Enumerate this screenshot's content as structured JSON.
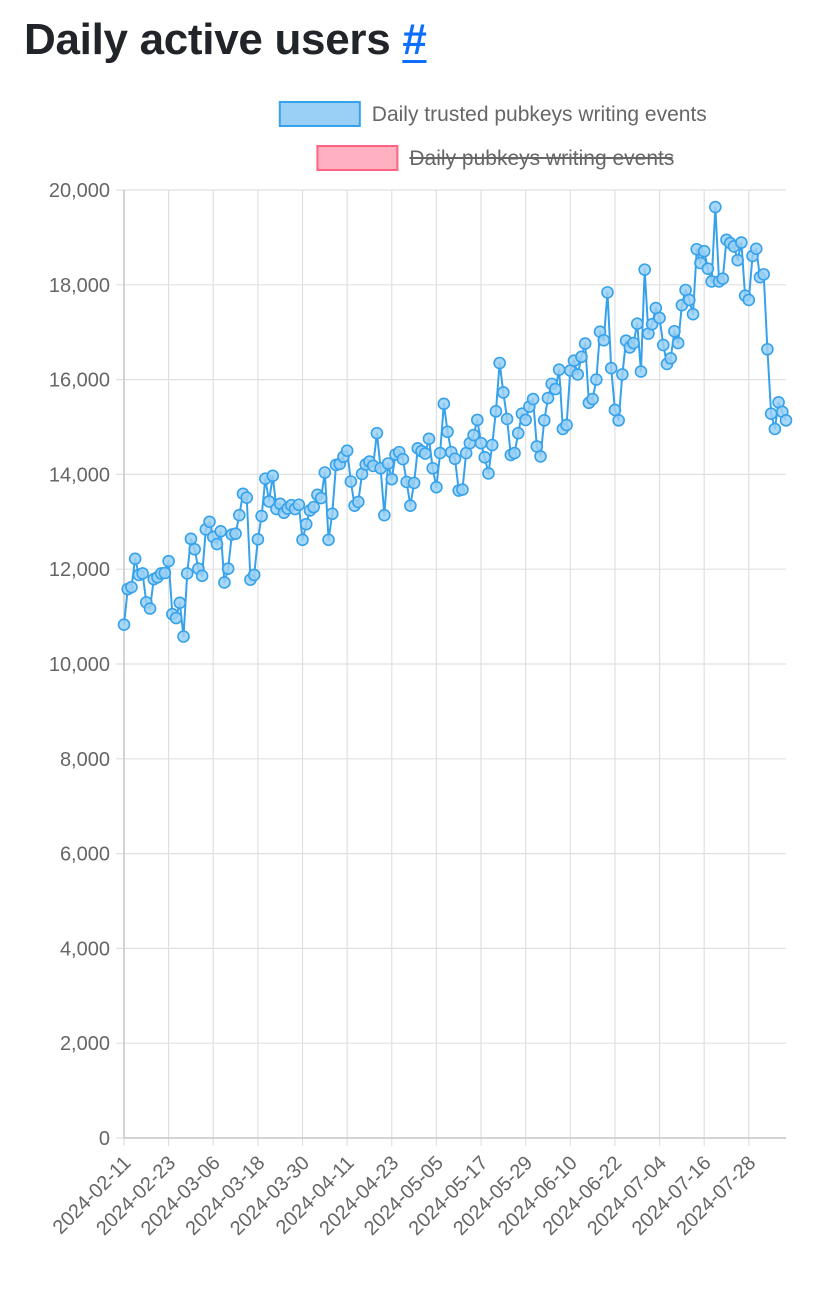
{
  "page": {
    "title": "Daily active users",
    "anchor": "#"
  },
  "chart_data": {
    "type": "line",
    "ylim": [
      0,
      20000
    ],
    "yticks": [
      0,
      2000,
      4000,
      6000,
      8000,
      10000,
      12000,
      14000,
      16000,
      18000,
      20000
    ],
    "x_tick_labels": [
      "2024-02-11",
      "2024-02-23",
      "2024-03-06",
      "2024-03-18",
      "2024-03-30",
      "2024-04-11",
      "2024-04-23",
      "2024-05-05",
      "2024-05-17",
      "2024-05-29",
      "2024-06-10",
      "2024-06-22",
      "2024-07-04",
      "2024-07-16",
      "2024-07-28"
    ],
    "grid": true,
    "legend_position": "top",
    "series": [
      {
        "name": "Daily trusted pubkeys writing events",
        "color": "#36a2eb",
        "fill": "#9ad0f5",
        "hidden": false,
        "values": [
          10830,
          11580,
          11620,
          12220,
          11880,
          11910,
          11300,
          11170,
          11790,
          11830,
          11910,
          11920,
          12170,
          11050,
          10970,
          11290,
          10580,
          11910,
          12640,
          12420,
          12010,
          11860,
          12840,
          13000,
          12680,
          12530,
          12800,
          11720,
          12010,
          12730,
          12750,
          13140,
          13590,
          13510,
          11780,
          11880,
          12630,
          13120,
          13910,
          13430,
          13970,
          13270,
          13380,
          13190,
          13280,
          13350,
          13270,
          13360,
          12620,
          12950,
          13240,
          13310,
          13570,
          13500,
          14040,
          12620,
          13170,
          14200,
          14220,
          14370,
          14500,
          13850,
          13340,
          13420,
          14010,
          14210,
          14270,
          14180,
          14870,
          14130,
          13140,
          14230,
          13900,
          14420,
          14470,
          14320,
          13840,
          13340,
          13820,
          14550,
          14490,
          14440,
          14750,
          14130,
          13730,
          14450,
          15490,
          14900,
          14470,
          14330,
          13660,
          13680,
          14450,
          14660,
          14830,
          15150,
          14660,
          14360,
          14020,
          14620,
          15330,
          16350,
          15730,
          15170,
          14410,
          14450,
          14870,
          15280,
          15150,
          15430,
          15590,
          14590,
          14380,
          15140,
          15610,
          15910,
          15800,
          16210,
          14960,
          15040,
          16190,
          16400,
          16110,
          16480,
          16760,
          15510,
          15590,
          16000,
          17010,
          16830,
          17840,
          16240,
          15360,
          15140,
          16110,
          16820,
          16680,
          16770,
          17180,
          16170,
          18320,
          16970,
          17170,
          17510,
          17300,
          16730,
          16330,
          16450,
          17020,
          16770,
          17570,
          17890,
          17680,
          17380,
          18750,
          18460,
          18710,
          18340,
          18070,
          19640,
          18070,
          18130,
          18950,
          18880,
          18810,
          18520,
          18890,
          17770,
          17680,
          18610,
          18760,
          18160,
          18220,
          16640,
          15280,
          14960,
          15520,
          15320,
          15140
        ]
      },
      {
        "name": "Daily pubkeys writing events",
        "color": "#ff6384",
        "fill": "#ffb1c1",
        "hidden": true,
        "values": []
      }
    ]
  }
}
